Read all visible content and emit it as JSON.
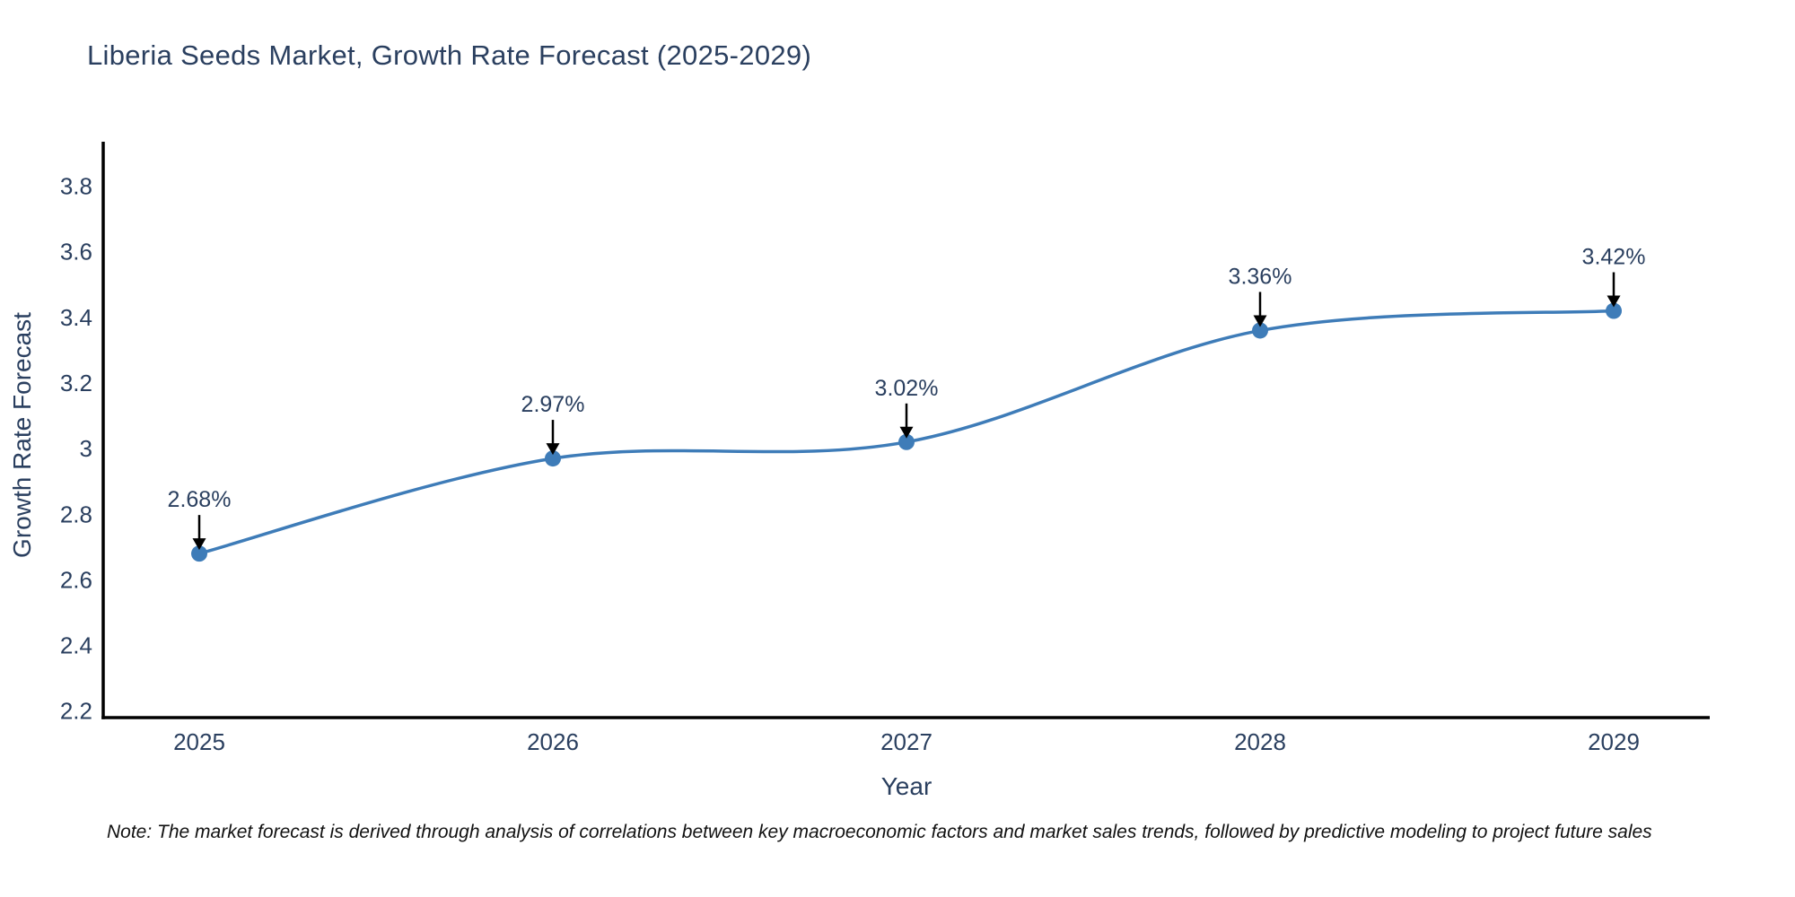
{
  "title": "Liberia Seeds Market, Growth Rate Forecast (2025-2029)",
  "note": "Note: The market forecast is derived through analysis of correlations between key macroeconomic factors and market sales trends, followed by predictive modeling to project future sales",
  "chart_data": {
    "type": "line",
    "title": "Liberia Seeds Market, Growth Rate Forecast (2025-2029)",
    "x": [
      2025,
      2026,
      2027,
      2028,
      2029
    ],
    "series": [
      {
        "name": "Growth Rate Forecast",
        "values": [
          2.68,
          2.97,
          3.02,
          3.36,
          3.42
        ],
        "point_labels": [
          "2.68%",
          "2.97%",
          "3.02%",
          "3.36%",
          "3.42%"
        ]
      }
    ],
    "xlabel": "Year",
    "ylabel": "Growth Rate Forecast",
    "ylim": [
      2.18,
      3.93
    ],
    "yticks": [
      2.2,
      2.4,
      2.6,
      2.8,
      3,
      3.2,
      3.4,
      3.6,
      3.8
    ],
    "line_shape": "spline",
    "grid": false,
    "legend": "none",
    "colors": {
      "line": "#3e7cb8",
      "marker": "#3e7cb8",
      "axis": "#000000",
      "text": "#2a3f5f",
      "arrow": "#000000",
      "note_text": "#111111",
      "background": "#ffffff"
    }
  }
}
